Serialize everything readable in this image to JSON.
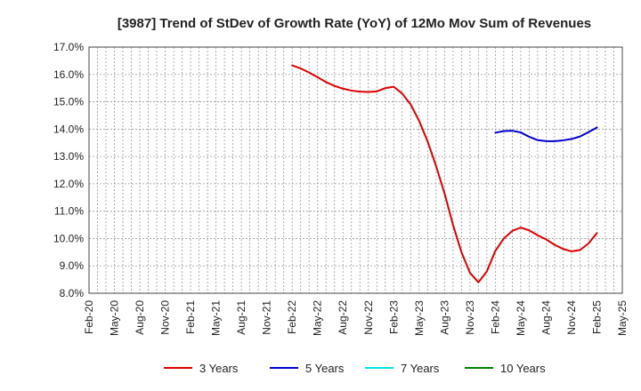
{
  "chart_data": {
    "type": "line",
    "title": "[3987]  Trend of StDev of Growth Rate (YoY) of 12Mo Mov Sum of Revenues",
    "xlabel": "",
    "ylabel": "",
    "ylim": [
      8.0,
      17.0
    ],
    "y_ticks": [
      "8.0%",
      "9.0%",
      "10.0%",
      "11.0%",
      "12.0%",
      "13.0%",
      "14.0%",
      "15.0%",
      "16.0%",
      "17.0%"
    ],
    "x_ticks": [
      "Feb-20",
      "May-20",
      "Aug-20",
      "Nov-20",
      "Feb-21",
      "May-21",
      "Aug-21",
      "Nov-21",
      "Feb-22",
      "May-22",
      "Aug-22",
      "Nov-22",
      "Feb-23",
      "May-23",
      "Aug-23",
      "Nov-23",
      "Feb-24",
      "May-24",
      "Aug-24",
      "Nov-24",
      "Feb-25",
      "May-25"
    ],
    "grid": true,
    "legend_position": "bottom",
    "series": [
      {
        "name": "3 Years",
        "color": "#dd0000",
        "start_index": 24,
        "values": [
          16.33,
          16.22,
          16.07,
          15.9,
          15.72,
          15.58,
          15.48,
          15.41,
          15.37,
          15.36,
          15.38,
          15.5,
          15.55,
          15.3,
          14.9,
          14.3,
          13.55,
          12.65,
          11.65,
          10.5,
          9.5,
          8.75,
          8.4,
          8.8,
          9.55,
          10.0,
          10.28,
          10.4,
          10.3,
          10.12,
          9.97,
          9.77,
          9.62,
          9.53,
          9.58,
          9.82,
          10.2
        ]
      },
      {
        "name": "5 Years",
        "color": "#0000cc",
        "start_index": 48,
        "values": [
          13.87,
          13.93,
          13.94,
          13.88,
          13.72,
          13.6,
          13.56,
          13.56,
          13.59,
          13.64,
          13.73,
          13.89,
          14.06
        ]
      },
      {
        "name": "7 Years",
        "color": "#00e5e5",
        "start_index": 0,
        "values": []
      },
      {
        "name": "10 Years",
        "color": "#008000",
        "start_index": 0,
        "values": []
      }
    ]
  }
}
